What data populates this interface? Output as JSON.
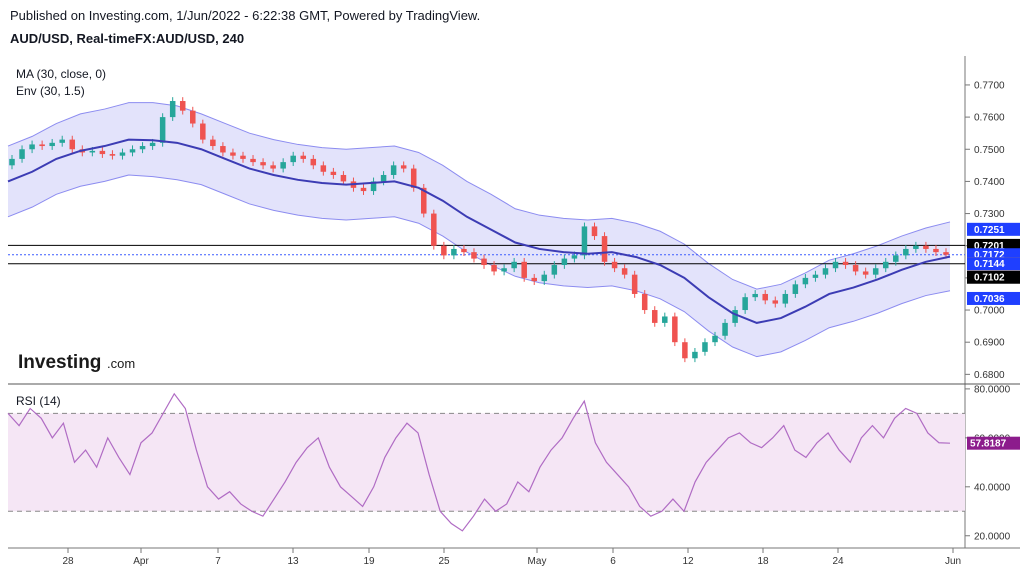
{
  "header": {
    "published": "Published on Investing.com, 1/Jun/2022 - 6:22:38 GMT, Powered by TradingView.",
    "symbol": "AUD/USD, Real-timeFX:AUD/USD, 240"
  },
  "indicators": {
    "ma": "MA (30, close, 0)",
    "env": "Env (30, 1.5)",
    "rsi": "RSI (14)"
  },
  "logo": {
    "main": "Investing",
    "suffix": ".com"
  },
  "colors": {
    "up": "#26a69a",
    "down": "#ef5350",
    "ma": "#3c3cb4",
    "env_line": "#8c8cf0",
    "env_fill": "#e3e3fb",
    "rsi_line": "#b06cc4",
    "rsi_fill": "#f5e6f5",
    "badge_blue": "#1f3fff",
    "badge_orange": "#ff9800",
    "badge_black": "#000000",
    "badge_purple": "#8c1c8c"
  },
  "chart_data": [
    {
      "type": "candlestick",
      "title": "AUD/USD, Real-timeFX:AUD/USD, 240",
      "ylim": [
        0.677,
        0.779
      ],
      "y_ticks": [
        "0.7700",
        "0.7600",
        "0.7500",
        "0.7400",
        "0.7300",
        "0.7200",
        "0.7100",
        "0.7000",
        "0.6900",
        "0.6800"
      ],
      "x_ticks": [
        "28",
        "Apr",
        "7",
        "13",
        "19",
        "25",
        "May",
        "6",
        "12",
        "18",
        "24",
        "Jun"
      ],
      "close_series": [
        0.747,
        0.75,
        0.7515,
        0.751,
        0.752,
        0.753,
        0.75,
        0.749,
        0.7495,
        0.7485,
        0.748,
        0.749,
        0.75,
        0.751,
        0.752,
        0.76,
        0.765,
        0.762,
        0.758,
        0.753,
        0.751,
        0.749,
        0.748,
        0.747,
        0.746,
        0.745,
        0.744,
        0.746,
        0.748,
        0.747,
        0.745,
        0.743,
        0.742,
        0.74,
        0.738,
        0.737,
        0.74,
        0.742,
        0.745,
        0.744,
        0.738,
        0.73,
        0.72,
        0.717,
        0.719,
        0.718,
        0.716,
        0.714,
        0.712,
        0.713,
        0.715,
        0.71,
        0.709,
        0.711,
        0.714,
        0.716,
        0.717,
        0.726,
        0.723,
        0.715,
        0.713,
        0.711,
        0.705,
        0.7,
        0.696,
        0.698,
        0.69,
        0.685,
        0.687,
        0.69,
        0.692,
        0.696,
        0.7,
        0.704,
        0.705,
        0.703,
        0.702,
        0.705,
        0.708,
        0.71,
        0.711,
        0.713,
        0.715,
        0.714,
        0.712,
        0.711,
        0.713,
        0.715,
        0.717,
        0.719,
        0.72,
        0.719,
        0.718,
        0.7172
      ],
      "ma_series": [
        0.74,
        0.743,
        0.747,
        0.7495,
        0.751,
        0.753,
        0.7528,
        0.752,
        0.75,
        0.747,
        0.744,
        0.742,
        0.7405,
        0.7395,
        0.739,
        0.7395,
        0.74,
        0.738,
        0.734,
        0.729,
        0.725,
        0.721,
        0.719,
        0.718,
        0.7175,
        0.718,
        0.7165,
        0.714,
        0.71,
        0.704,
        0.699,
        0.696,
        0.6975,
        0.701,
        0.705,
        0.707,
        0.7095,
        0.7125,
        0.715,
        0.7166
      ],
      "envelope_upper": [
        0.751,
        0.754,
        0.758,
        0.761,
        0.7625,
        0.7645,
        0.7645,
        0.7635,
        0.761,
        0.758,
        0.755,
        0.753,
        0.7515,
        0.7505,
        0.75,
        0.7505,
        0.751,
        0.749,
        0.745,
        0.74,
        0.736,
        0.7315,
        0.7295,
        0.7285,
        0.728,
        0.7285,
        0.727,
        0.7245,
        0.7205,
        0.7145,
        0.7095,
        0.7065,
        0.708,
        0.7115,
        0.7155,
        0.7175,
        0.72,
        0.723,
        0.7255,
        0.7274
      ],
      "envelope_lower": [
        0.729,
        0.732,
        0.736,
        0.7385,
        0.74,
        0.742,
        0.7415,
        0.7405,
        0.739,
        0.736,
        0.733,
        0.731,
        0.7295,
        0.7285,
        0.728,
        0.7285,
        0.729,
        0.727,
        0.723,
        0.718,
        0.714,
        0.7105,
        0.7085,
        0.7075,
        0.707,
        0.7075,
        0.706,
        0.7035,
        0.6995,
        0.6935,
        0.6885,
        0.6855,
        0.687,
        0.6905,
        0.6945,
        0.6965,
        0.699,
        0.702,
        0.7045,
        0.706
      ],
      "hlines": [
        0.7201,
        0.7144
      ],
      "price_badges": [
        {
          "label": "0.7251",
          "color": "#1f3fff",
          "value": 0.7251
        },
        {
          "label": "0.7201",
          "color": "#000000",
          "value": 0.7201
        },
        {
          "label": "0.7172",
          "color": "#1f3fff",
          "value": 0.7172
        },
        {
          "label": "0.7144",
          "color": "#ff9800",
          "value": 0.7144
        },
        {
          "label": "0.7144",
          "color": "#1f3fff",
          "value": 0.7144
        },
        {
          "label": "0.7102",
          "color": "#000000",
          "value": 0.7102
        },
        {
          "label": "0.7036",
          "color": "#1f3fff",
          "value": 0.7036
        }
      ]
    },
    {
      "type": "line",
      "title": "RSI (14)",
      "ylim": [
        15,
        82
      ],
      "y_ticks": [
        "80.0000",
        "60.0000",
        "40.0000",
        "20.0000"
      ],
      "bands": [
        70,
        30
      ],
      "values": [
        70,
        65,
        72,
        68,
        60,
        66,
        50,
        55,
        48,
        60,
        52,
        45,
        58,
        62,
        70,
        78,
        72,
        55,
        40,
        35,
        38,
        33,
        30,
        28,
        35,
        42,
        50,
        56,
        60,
        48,
        40,
        36,
        32,
        40,
        52,
        60,
        66,
        62,
        45,
        30,
        25,
        22,
        28,
        35,
        30,
        33,
        42,
        38,
        48,
        55,
        60,
        68,
        75,
        58,
        50,
        45,
        40,
        32,
        28,
        30,
        35,
        30,
        42,
        50,
        55,
        60,
        62,
        58,
        56,
        60,
        65,
        55,
        52,
        58,
        62,
        55,
        50,
        60,
        65,
        60,
        68,
        72,
        70,
        62,
        58,
        57.8187
      ],
      "value_badge": {
        "label": "57.8187",
        "color": "#8c1c8c",
        "value": 57.8187
      }
    }
  ]
}
